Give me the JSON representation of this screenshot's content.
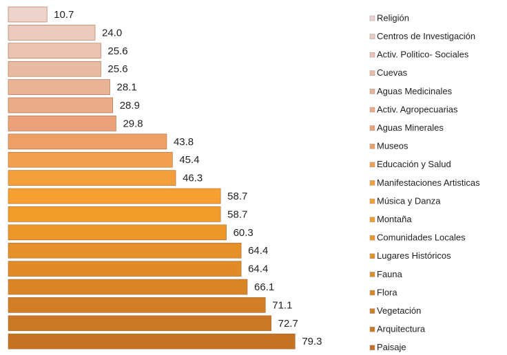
{
  "chart_data": {
    "type": "bar",
    "orientation": "horizontal",
    "categories": [
      "Religión",
      "Centros de Investigación",
      "Activ. Politico- Sociales",
      "Cuevas",
      "Aguas Medicinales",
      "Activ. Agropecuarias",
      "Aguas Minerales",
      "Museos",
      "Educación y Salud",
      "Manifestaciones  Artisticas",
      "Música y Danza",
      "Montaña",
      "Comunidades Locales",
      "Lugares Históricos",
      "Fauna",
      "Flora",
      "Vegetación",
      "Arquitectura",
      "Paisaje"
    ],
    "values": [
      10.7,
      24.0,
      25.6,
      25.6,
      28.1,
      28.9,
      29.8,
      43.8,
      45.4,
      46.3,
      58.7,
      58.7,
      60.3,
      64.4,
      64.4,
      66.1,
      71.1,
      72.7,
      79.3
    ],
    "value_labels": [
      "10.7",
      "24.0",
      "25.6",
      "25.6",
      "28.1",
      "28.9",
      "29.8",
      "43.8",
      "45.4",
      "46.3",
      "58.7",
      "58.7",
      "60.3",
      "64.4",
      "64.4",
      "66.1",
      "71.1",
      "72.7",
      "79.3"
    ],
    "colors": [
      "#ecd3cc",
      "#ebcbbf",
      "#eac3b2",
      "#e9bba4",
      "#e9b397",
      "#eaab88",
      "#eba27a",
      "#eda066",
      "#f0a050",
      "#f3a03c",
      "#f5a030",
      "#f29c2c",
      "#ec962a",
      "#e69029",
      "#e08a28",
      "#d98427",
      "#d27e26",
      "#cb7825",
      "#c47224"
    ],
    "xlim": [
      0,
      80
    ],
    "legend": "right"
  }
}
